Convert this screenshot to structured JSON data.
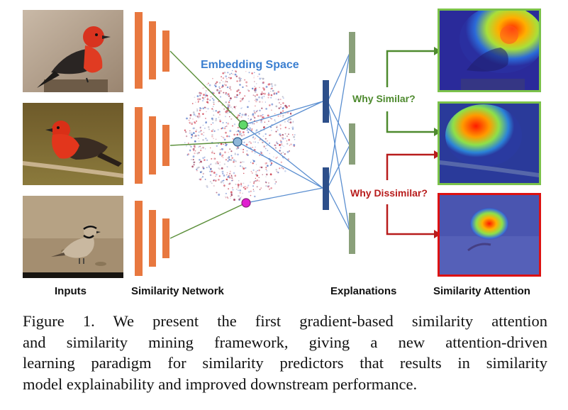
{
  "labels": {
    "inputs": "Inputs",
    "similarity_network": "Similarity Network",
    "explanations": "Explanations",
    "similarity_attention": "Similarity Attention",
    "embedding_space": "Embedding Space",
    "why_similar": "Why Similar?",
    "why_dissimilar": "Why Dissimilar?"
  },
  "caption": {
    "lines": [
      "Figure 1. We present the first gradient-based similarity attention",
      "and similarity mining framework, giving a new attention-driven",
      "learning paradigm for similarity predictors that results in similarity",
      "model explainability and improved downstream performance."
    ]
  },
  "colors": {
    "network_block": "#e8783f",
    "explanation_block_dark": "#2d4f8a",
    "explanation_block_light": "#8aa07a",
    "similar_arrow": "#4e8a2e",
    "dissimilar_arrow": "#b81c1c",
    "embedding_title": "#3b7fd0",
    "similar_border": "#7bc24a",
    "dissimilar_border": "#d11",
    "point_green": "#5fd86a",
    "point_blue": "#8fb7d8",
    "point_magenta": "#e01fd0"
  }
}
